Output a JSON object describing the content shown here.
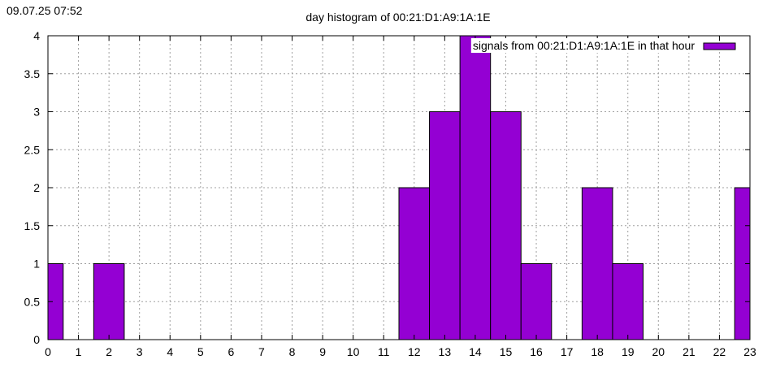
{
  "timestamp": "09.07.25 07:52",
  "chart_data": {
    "type": "bar",
    "title": "day histogram of 00:21:D1:A9:1A:1E",
    "xlabel": "",
    "ylabel": "",
    "x": [
      0,
      1,
      2,
      3,
      4,
      5,
      6,
      7,
      8,
      9,
      10,
      11,
      12,
      13,
      14,
      15,
      16,
      17,
      18,
      19,
      20,
      21,
      22,
      23
    ],
    "xlim": [
      0,
      23
    ],
    "ylim": [
      0,
      4
    ],
    "x_ticks": [
      "0",
      "1",
      "2",
      "3",
      "4",
      "5",
      "6",
      "7",
      "8",
      "9",
      "10",
      "11",
      "12",
      "13",
      "14",
      "15",
      "16",
      "17",
      "18",
      "19",
      "20",
      "21",
      "22",
      "23"
    ],
    "y_ticks": [
      "0",
      "0.5",
      "1",
      "1.5",
      "2",
      "2.5",
      "3",
      "3.5",
      "4"
    ],
    "series": [
      {
        "name": "signals from 00:21:D1:A9:1A:1E in that hour",
        "color": "#9400d3",
        "values": [
          1,
          0,
          1,
          0,
          0,
          0,
          0,
          0,
          0,
          0,
          0,
          0,
          2,
          3,
          4,
          3,
          1,
          0,
          2,
          1,
          0,
          0,
          0,
          2
        ]
      }
    ],
    "grid": true,
    "legend_position": "top-right"
  }
}
